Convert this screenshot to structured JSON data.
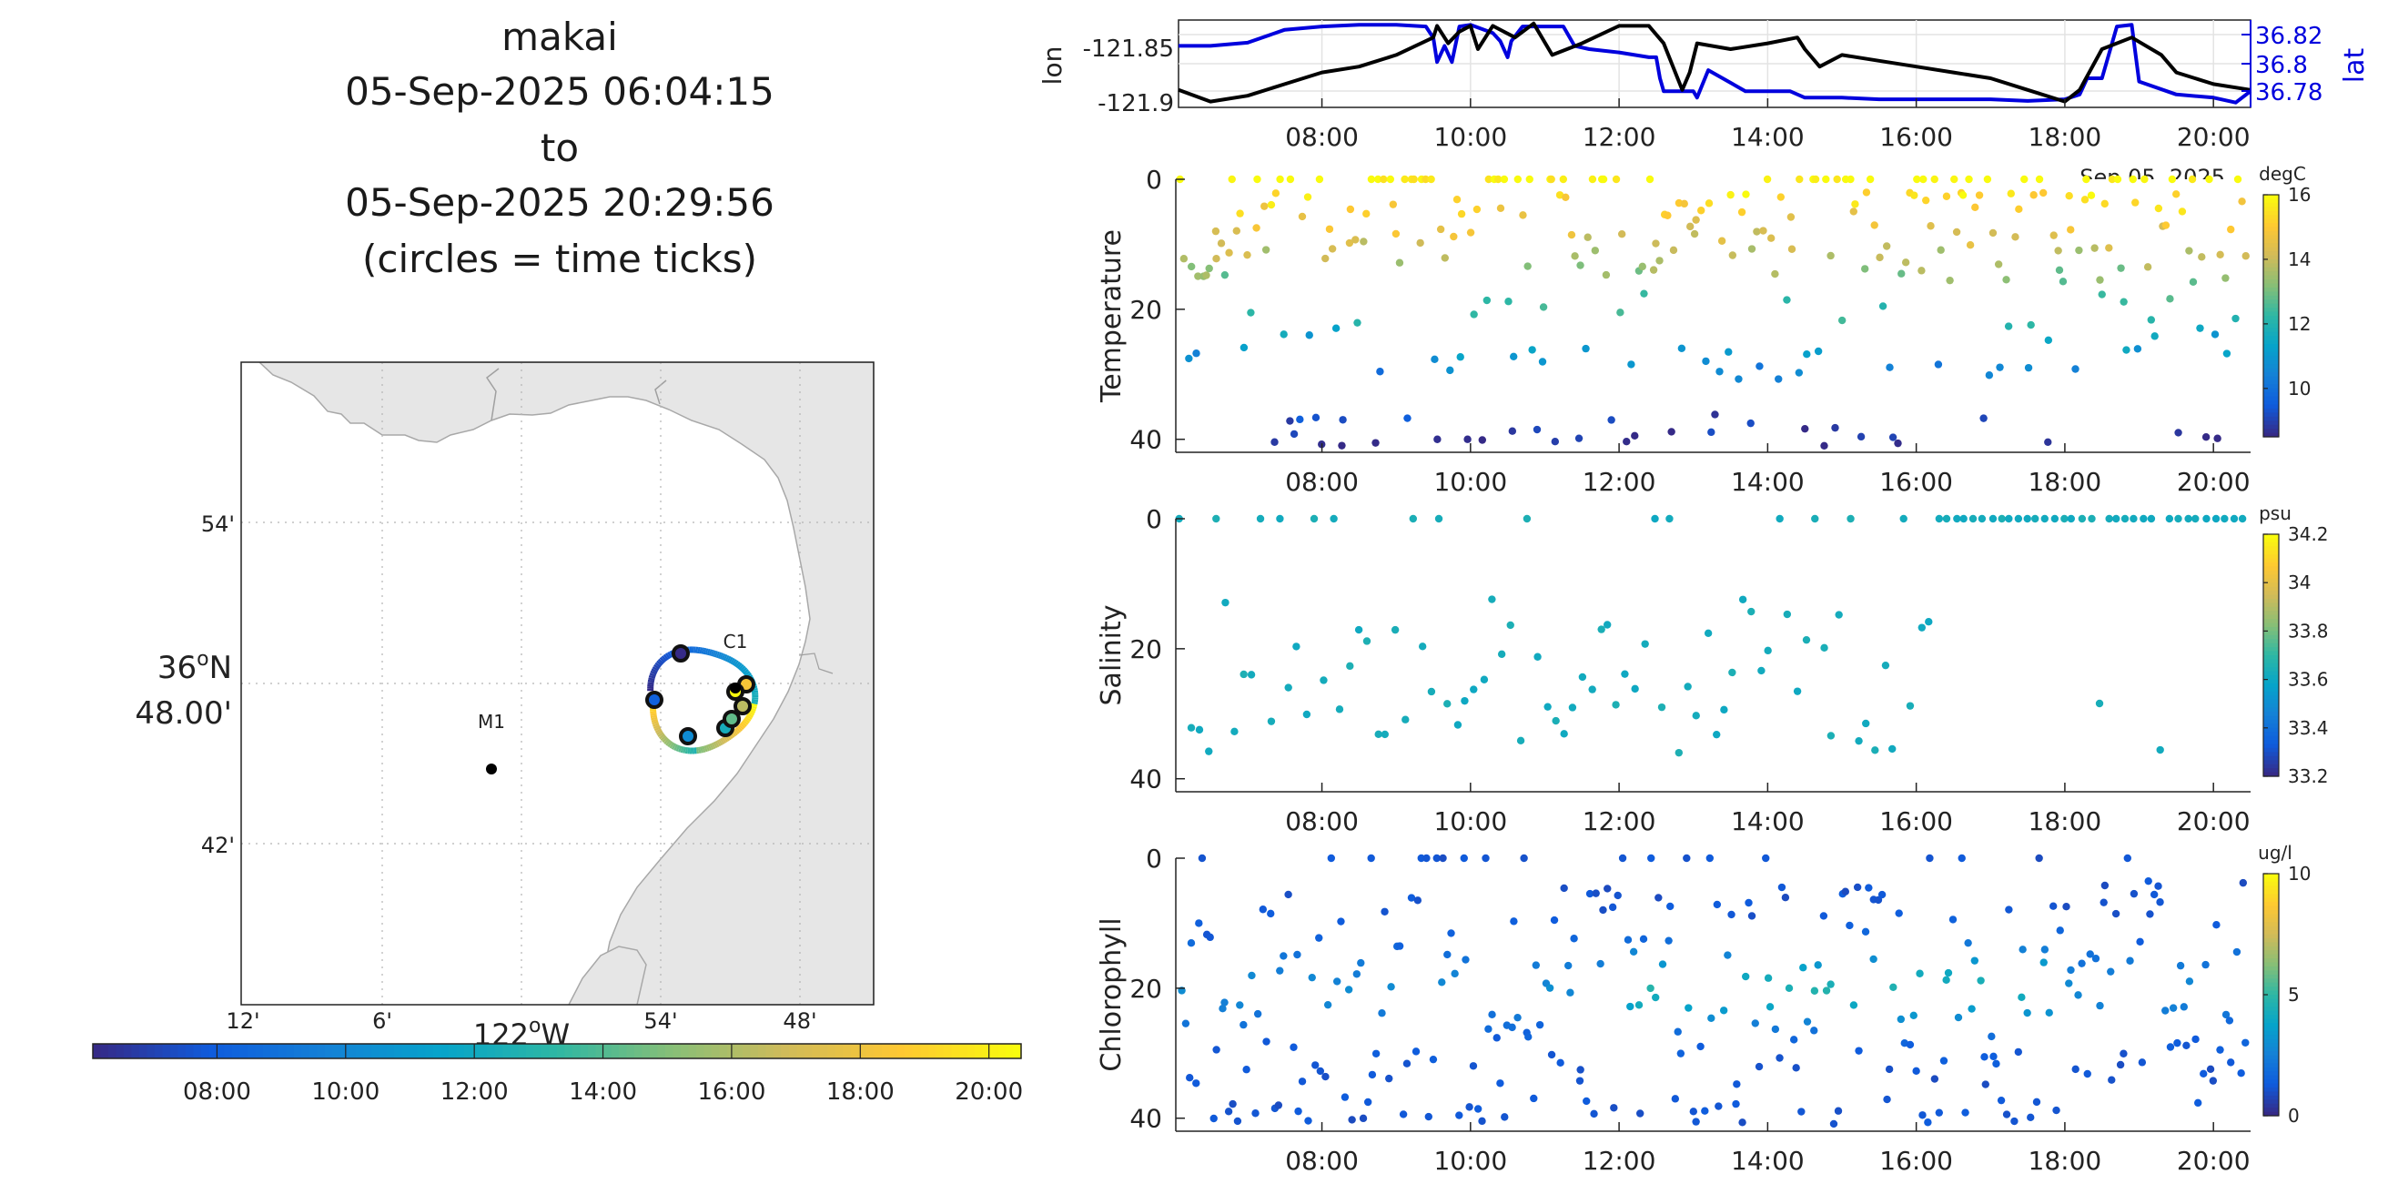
{
  "figure_title": {
    "lines": [
      "makai",
      "05-Sep-2025 06:04:15",
      "to",
      "05-Sep-2025 20:29:56",
      "(circles = time ticks)"
    ]
  },
  "colors": {
    "track_lon": "#000000",
    "track_lat": "#0000dd",
    "land": "#e6e6e6",
    "coast": "#a8a8a8",
    "parula": [
      "#352a87",
      "#0f5cdd",
      "#1481d6",
      "#06a4ca",
      "#2eb7a4",
      "#87bf77",
      "#d1bb59",
      "#fec832",
      "#f9fb0e"
    ]
  },
  "chart_data": [
    {
      "id": "map",
      "type": "scatter",
      "title": "",
      "lat_label": {
        "deg": "36",
        "deg_sym": "o",
        "hem": "N",
        "min": "48.00'"
      },
      "lon_label": {
        "deg": "122",
        "deg_sym": "o",
        "hem": "W"
      },
      "lat_ticks": [
        "54'",
        "42'"
      ],
      "lon_ticks": [
        "12'",
        "6'",
        "54'",
        "48'"
      ],
      "stations": [
        {
          "name": "M1",
          "lon": -122.0333,
          "lat": 36.7467
        },
        {
          "name": "C1",
          "lon": -121.8467,
          "lat": 36.7967
        }
      ],
      "grid": true
    },
    {
      "id": "time_colorbar",
      "type": "colorbar",
      "ticks": [
        "08:00",
        "10:00",
        "12:00",
        "14:00",
        "16:00",
        "18:00",
        "20:00"
      ],
      "range": [
        "06:04",
        "20:30"
      ]
    },
    {
      "id": "lonlat",
      "type": "line",
      "ylabel_left": "lon",
      "ylabel_right": "lat",
      "left_ticks": [
        "-121.85",
        "-121.9"
      ],
      "right_ticks": [
        "36.82",
        "36.8",
        "36.78"
      ],
      "x_ticks": [
        "08:00",
        "10:00",
        "12:00",
        "14:00",
        "16:00",
        "18:00",
        "20:00"
      ],
      "date_label": "Sep 05, 2025",
      "xlim": [
        6.07,
        20.5
      ],
      "lon_ylim": [
        -121.91,
        -121.835
      ],
      "lat_ylim": [
        36.772,
        36.826
      ],
      "series": [
        {
          "name": "lon",
          "x": [
            6.07,
            6.5,
            7.0,
            7.5,
            8.0,
            8.5,
            9.0,
            9.5,
            9.55,
            9.7,
            9.85,
            10.0,
            10.1,
            10.3,
            10.6,
            10.85,
            11.1,
            11.5,
            12.0,
            12.4,
            12.6,
            12.85,
            12.95,
            13.05,
            13.5,
            14.0,
            14.4,
            14.5,
            14.7,
            15.0,
            15.5,
            16.0,
            16.5,
            17.0,
            17.5,
            18.0,
            18.2,
            18.5,
            18.9,
            19.3,
            19.5,
            20.0,
            20.5
          ],
          "y": [
            -121.895,
            -121.905,
            -121.9,
            -121.89,
            -121.88,
            -121.875,
            -121.865,
            -121.85,
            -121.84,
            -121.855,
            -121.845,
            -121.84,
            -121.86,
            -121.84,
            -121.85,
            -121.838,
            -121.865,
            -121.855,
            -121.84,
            -121.84,
            -121.855,
            -121.895,
            -121.88,
            -121.855,
            -121.86,
            -121.855,
            -121.85,
            -121.86,
            -121.875,
            -121.865,
            -121.87,
            -121.875,
            -121.88,
            -121.885,
            -121.895,
            -121.905,
            -121.895,
            -121.86,
            -121.85,
            -121.865,
            -121.88,
            -121.89,
            -121.895
          ]
        },
        {
          "name": "lat",
          "x": [
            6.07,
            6.5,
            7.0,
            7.5,
            8.0,
            8.5,
            9.0,
            9.4,
            9.5,
            9.55,
            9.65,
            9.75,
            9.85,
            10.0,
            10.3,
            10.4,
            10.5,
            10.55,
            10.7,
            11.0,
            11.25,
            11.4,
            11.6,
            12.0,
            12.4,
            12.5,
            12.55,
            12.6,
            13.0,
            13.05,
            13.2,
            13.7,
            14.3,
            14.5,
            14.7,
            15.0,
            15.5,
            16.0,
            16.5,
            17.0,
            17.5,
            18.0,
            18.2,
            18.3,
            18.5,
            18.7,
            18.9,
            19.0,
            19.5,
            20.0,
            20.3,
            20.5
          ],
          "y": [
            36.81,
            36.81,
            36.812,
            36.82,
            36.822,
            36.823,
            36.823,
            36.822,
            36.815,
            36.8,
            36.81,
            36.8,
            36.822,
            36.823,
            36.818,
            36.813,
            36.803,
            36.813,
            36.822,
            36.822,
            36.822,
            36.81,
            36.808,
            36.806,
            36.803,
            36.803,
            36.79,
            36.782,
            36.782,
            36.778,
            36.795,
            36.782,
            36.782,
            36.778,
            36.778,
            36.778,
            36.777,
            36.777,
            36.777,
            36.777,
            36.776,
            36.777,
            36.78,
            36.79,
            36.79,
            36.822,
            36.823,
            36.788,
            36.78,
            36.778,
            36.775,
            36.782
          ]
        }
      ]
    },
    {
      "id": "temperature",
      "type": "scatter",
      "ylabel": "Temperature",
      "units": "degC",
      "ylim": [
        0,
        42
      ],
      "y_ticks": [
        "0",
        "20",
        "40"
      ],
      "x_ticks": [
        "08:00",
        "10:00",
        "12:00",
        "14:00",
        "16:00",
        "18:00",
        "20:00"
      ],
      "cbar_ticks": [
        "16",
        "14",
        "12",
        "10"
      ],
      "clim": [
        8.5,
        16
      ]
    },
    {
      "id": "salinity",
      "type": "scatter",
      "ylabel": "Salinity",
      "units": "psu",
      "ylim": [
        0,
        42
      ],
      "y_ticks": [
        "0",
        "20",
        "40"
      ],
      "x_ticks": [
        "08:00",
        "10:00",
        "12:00",
        "14:00",
        "16:00",
        "18:00",
        "20:00"
      ],
      "cbar_ticks": [
        "34.2",
        "34",
        "33.8",
        "33.6",
        "33.4",
        "33.2"
      ],
      "clim": [
        33.2,
        34.2
      ]
    },
    {
      "id": "chlorophyll",
      "type": "scatter",
      "ylabel": "Chlorophyll",
      "units": "ug/l",
      "ylim": [
        0,
        42
      ],
      "y_ticks": [
        "0",
        "20",
        "40"
      ],
      "x_ticks": [
        "08:00",
        "10:00",
        "12:00",
        "14:00",
        "16:00",
        "18:00",
        "20:00"
      ],
      "cbar_ticks": [
        "10",
        "5",
        "0"
      ],
      "clim": [
        0,
        10
      ]
    }
  ]
}
